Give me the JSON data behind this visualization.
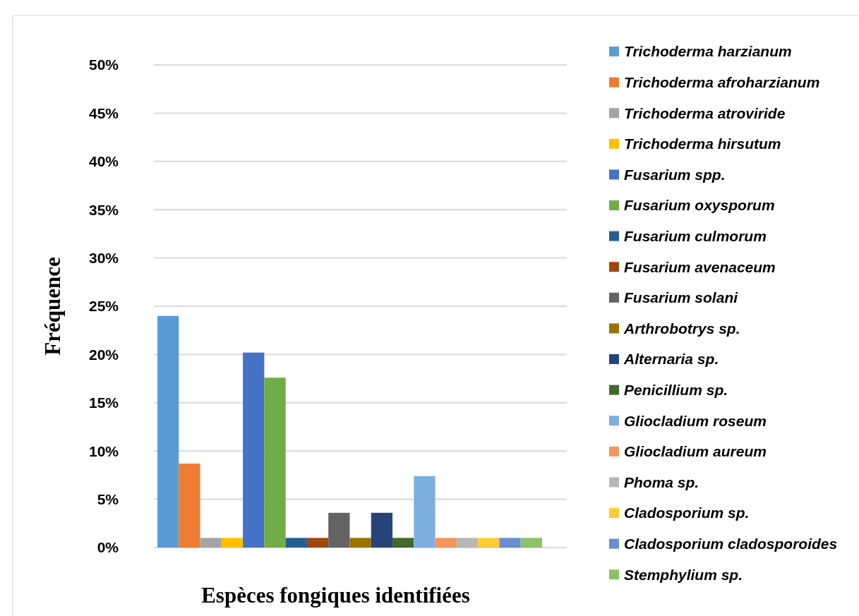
{
  "chart_data": {
    "type": "bar",
    "xlabel": "Espèces fongiques identifiées",
    "ylabel": "Fréquence",
    "categories": [
      null
    ],
    "ylim": [
      0,
      50
    ],
    "yticks": [
      {
        "value": 0,
        "label": "0%"
      },
      {
        "value": 5,
        "label": "5%"
      },
      {
        "value": 10,
        "label": "10%"
      },
      {
        "value": 15,
        "label": "15%"
      },
      {
        "value": 20,
        "label": "20%"
      },
      {
        "value": 25,
        "label": "25%"
      },
      {
        "value": 30,
        "label": "30%"
      },
      {
        "value": 35,
        "label": "35%"
      },
      {
        "value": 40,
        "label": "40%"
      },
      {
        "value": 45,
        "label": "45%"
      },
      {
        "value": 50,
        "label": "50%"
      }
    ],
    "grid": "y",
    "legend": "right",
    "series": [
      {
        "name": "Trichoderma harzianum",
        "color": "#5b9bd5",
        "values": [
          24
        ]
      },
      {
        "name": "Trichoderma afroharzianum",
        "color": "#ed7d31",
        "values": [
          8.7
        ]
      },
      {
        "name": "Trichoderma atroviride",
        "color": "#a5a5a5",
        "values": [
          1
        ]
      },
      {
        "name": "Trichoderma hirsutum",
        "color": "#ffc000",
        "values": [
          1
        ]
      },
      {
        "name": "Fusarium spp.",
        "color": "#4472c4",
        "values": [
          20.2
        ]
      },
      {
        "name": "Fusarium oxysporum",
        "color": "#70ad47",
        "values": [
          17.6
        ]
      },
      {
        "name": "Fusarium culmorum",
        "color": "#255e91",
        "values": [
          1
        ]
      },
      {
        "name": "Fusarium avenaceum",
        "color": "#9e480e",
        "values": [
          1
        ]
      },
      {
        "name": "Fusarium solani",
        "color": "#636363",
        "values": [
          3.6
        ]
      },
      {
        "name": "Arthrobotrys sp.",
        "color": "#997300",
        "values": [
          1
        ]
      },
      {
        "name": "Alternaria sp.",
        "color": "#264478",
        "values": [
          3.6
        ]
      },
      {
        "name": "Penicillium sp.",
        "color": "#43682b",
        "values": [
          1
        ]
      },
      {
        "name": "Gliocladium roseum",
        "color": "#7cafdd",
        "values": [
          7.4
        ]
      },
      {
        "name": "Gliocladium aureum",
        "color": "#f1975a",
        "values": [
          1
        ]
      },
      {
        "name": "Phoma sp.",
        "color": "#b7b7b7",
        "values": [
          1
        ]
      },
      {
        "name": "Cladosporium sp.",
        "color": "#ffcd33",
        "values": [
          1
        ]
      },
      {
        "name": "Cladosporium cladosporoides",
        "color": "#698ed0",
        "values": [
          1
        ]
      },
      {
        "name": "Stemphylium sp.",
        "color": "#8cc168",
        "values": [
          1
        ]
      }
    ]
  }
}
